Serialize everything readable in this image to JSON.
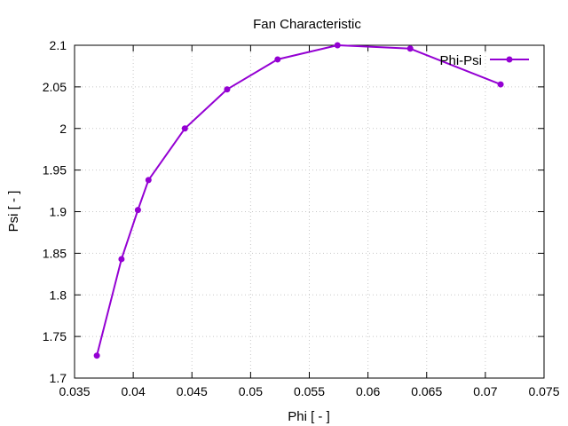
{
  "chart_data": {
    "type": "line",
    "title": "Fan Characteristic",
    "xlabel": "Phi [ - ]",
    "ylabel": "Psi [ - ]",
    "xlim": [
      0.035,
      0.075
    ],
    "ylim": [
      1.7,
      2.1
    ],
    "xticks": [
      0.035,
      0.04,
      0.045,
      0.05,
      0.055,
      0.06,
      0.065,
      0.07,
      0.075
    ],
    "yticks": [
      1.7,
      1.75,
      1.8,
      1.85,
      1.9,
      1.95,
      2.0,
      2.05,
      2.1
    ],
    "xtick_labels": [
      "0.035",
      "0.04",
      "0.045",
      "0.05",
      "0.055",
      "0.06",
      "0.065",
      "0.07",
      "0.075"
    ],
    "ytick_labels": [
      "1.7",
      "1.75",
      "1.8",
      "1.85",
      "1.9",
      "1.95",
      "2",
      "2.05",
      "2.1"
    ],
    "grid": true,
    "legend_position": "top-right",
    "series": [
      {
        "name": "Phi-Psi",
        "color": "#9400d3",
        "marker": "circle",
        "x": [
          0.0369,
          0.039,
          0.0404,
          0.0413,
          0.0444,
          0.048,
          0.0523,
          0.0574,
          0.0636,
          0.0713
        ],
        "y": [
          1.727,
          1.843,
          1.902,
          1.938,
          2.0,
          2.047,
          2.083,
          2.1,
          2.096,
          2.053
        ]
      }
    ]
  }
}
